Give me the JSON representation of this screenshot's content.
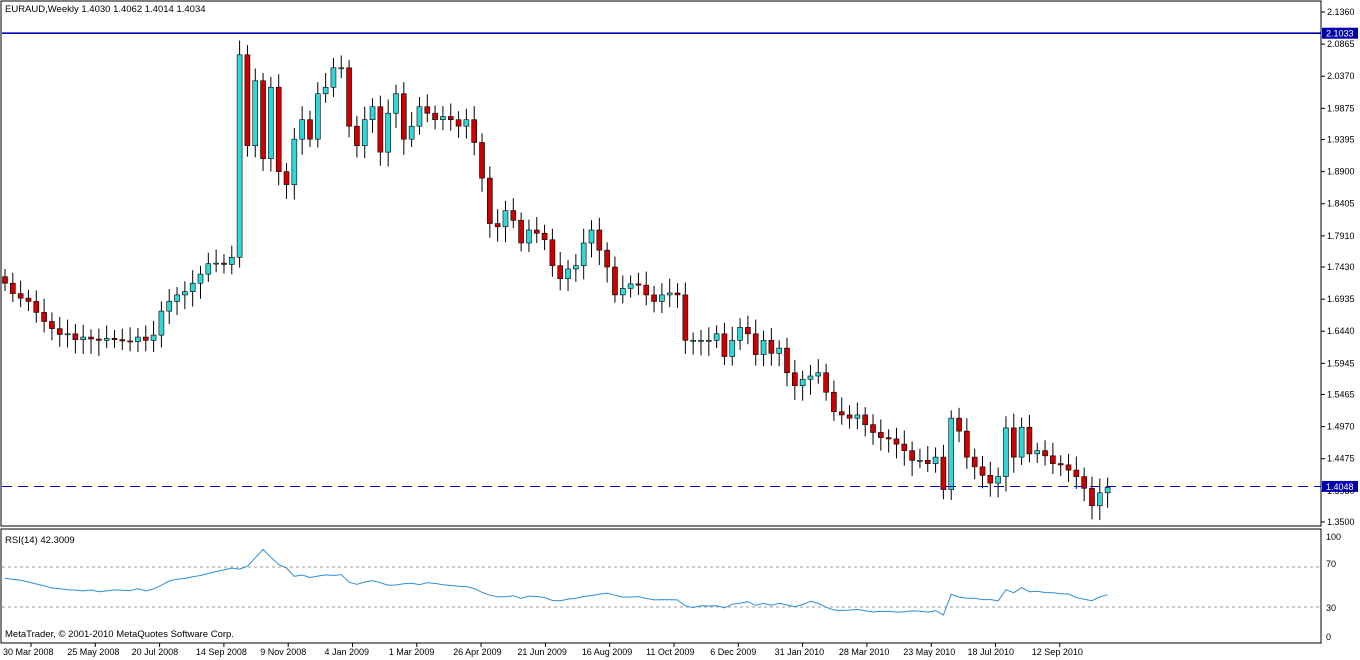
{
  "colors": {
    "background": "#ffffff",
    "up_fill": "#33d6d6",
    "down_fill": "#cc0000",
    "wick": "#000000",
    "hline": "#0000aa",
    "rsi_line": "#2f8fd8",
    "frame": "#000000",
    "level_dash": "#999999"
  },
  "header": {
    "text": "EURAUD,Weekly  1.4030 1.4062 1.4014 1.4034"
  },
  "price_tags": {
    "upper_line": "2.1033",
    "current": "1.4048"
  },
  "rsi_panel": {
    "label": "RSI(14) 42.3009",
    "ticks": [
      "100",
      "70",
      "30",
      "0"
    ]
  },
  "copyright": "MetaTrader, © 2001-2010 MetaQuotes Software Corp.",
  "chart_data": [
    {
      "type": "candlestick",
      "title": "EURAUD,Weekly",
      "ohlc_last": [
        1.403,
        1.4062,
        1.4014,
        1.4034
      ],
      "ylim": [
        1.35,
        2.136
      ],
      "y_ticks": [
        "2.1360",
        "2.0865",
        "2.0370",
        "1.9875",
        "1.9395",
        "1.8900",
        "1.8405",
        "1.7910",
        "1.7430",
        "1.6935",
        "1.6440",
        "1.5945",
        "1.5465",
        "1.4970",
        "1.4475",
        "1.3980",
        "1.3500"
      ],
      "horizontal_lines": [
        {
          "value": 2.1033,
          "style": "solid"
        },
        {
          "value": 1.4048,
          "style": "dashed"
        }
      ],
      "x_labels": [
        "30 Mar 2008",
        "25 May 2008",
        "20 Jul 2008",
        "14 Sep 2008",
        "9 Nov 2008",
        "4 Jan 2009",
        "1 Mar 2009",
        "26 Apr 2009",
        "21 Jun 2009",
        "16 Aug 2009",
        "11 Oct 2009",
        "6 Dec 2009",
        "31 Jan 2010",
        "28 Mar 2010",
        "23 May 2010",
        "18 Jul 2010",
        "12 Sep 2010"
      ],
      "closes": [
        1.718,
        1.702,
        1.695,
        1.69,
        1.673,
        1.659,
        1.648,
        1.639,
        1.64,
        1.631,
        1.635,
        1.632,
        1.63,
        1.633,
        1.631,
        1.629,
        1.628,
        1.635,
        1.63,
        1.638,
        1.675,
        1.69,
        1.7,
        1.705,
        1.718,
        1.732,
        1.748,
        1.749,
        1.747,
        1.758,
        2.07,
        1.93,
        2.03,
        1.91,
        2.02,
        1.89,
        1.87,
        1.94,
        1.97,
        1.94,
        2.01,
        2.02,
        2.05,
        2.05,
        1.96,
        1.93,
        1.97,
        1.99,
        1.92,
        1.98,
        2.01,
        1.94,
        1.96,
        1.99,
        1.98,
        1.97,
        1.975,
        1.97,
        1.96,
        1.97,
        1.935,
        1.88,
        1.81,
        1.805,
        1.83,
        1.815,
        1.78,
        1.8,
        1.795,
        1.785,
        1.745,
        1.725,
        1.74,
        1.745,
        1.78,
        1.8,
        1.769,
        1.743,
        1.7,
        1.71,
        1.717,
        1.715,
        1.7,
        1.69,
        1.7,
        1.703,
        1.7,
        1.63,
        1.63,
        1.63,
        1.63,
        1.64,
        1.605,
        1.63,
        1.65,
        1.64,
        1.608,
        1.63,
        1.61,
        1.618,
        1.58,
        1.56,
        1.57,
        1.575,
        1.58,
        1.55,
        1.52,
        1.515,
        1.51,
        1.515,
        1.5,
        1.488,
        1.48,
        1.478,
        1.47,
        1.46,
        1.445,
        1.445,
        1.44,
        1.45,
        1.4,
        1.51,
        1.49,
        1.45,
        1.435,
        1.422,
        1.41,
        1.42,
        1.495,
        1.45,
        1.496,
        1.455,
        1.46,
        1.452,
        1.44,
        1.438,
        1.43,
        1.42,
        1.402,
        1.375,
        1.395,
        1.4034
      ],
      "rsi": {
        "name": "RSI(14)",
        "last_value": 42.3009,
        "ylim": [
          0,
          100
        ],
        "levels": [
          70,
          30
        ],
        "values": [
          58.6,
          57.7,
          56.7,
          55.0,
          53.0,
          51.2,
          49.1,
          48.3,
          47.2,
          46.9,
          46.1,
          47.1,
          45.3,
          46.1,
          47.1,
          46.8,
          46.3,
          48.3,
          46.0,
          48.1,
          51.8,
          56.0,
          57.8,
          58.6,
          60.3,
          61.5,
          63.6,
          65.5,
          67.1,
          68.9,
          67.9,
          70.7,
          79.2,
          87.6,
          79.7,
          72.4,
          68.9,
          60.7,
          62.0,
          59.5,
          60.9,
          62.1,
          61.6,
          62.4,
          54.8,
          52.7,
          55.0,
          56.4,
          54.2,
          51.8,
          52.0,
          53.3,
          53.7,
          52.4,
          54.3,
          53.6,
          52.3,
          51.5,
          50.7,
          50.4,
          48.4,
          44.7,
          41.8,
          40.3,
          40.3,
          41.3,
          38.7,
          40.9,
          40.5,
          39.5,
          36.5,
          36.3,
          37.9,
          38.8,
          40.5,
          41.5,
          42.9,
          43.8,
          41.7,
          40.0,
          39.9,
          40.4,
          38.6,
          37.1,
          37.4,
          37.3,
          37.1,
          31.2,
          29.4,
          31.2,
          31.0,
          31.3,
          29.1,
          32.7,
          33.8,
          35.3,
          31.6,
          33.6,
          31.6,
          33.7,
          32.0,
          30.3,
          32.4,
          35.7,
          33.5,
          29.8,
          27.0,
          26.5,
          26.9,
          27.6,
          26.3,
          25.0,
          25.6,
          25.7,
          24.9,
          25.3,
          26.1,
          25.8,
          24.9,
          26.4,
          22.1,
          42.7,
          39.9,
          38.8,
          38.7,
          37.4,
          37.5,
          36.1,
          47.3,
          44.3,
          49.4,
          45.3,
          45.8,
          44.5,
          44.2,
          43.3,
          43.0,
          39.5,
          37.7,
          36.3,
          40.1,
          42.3
        ]
      }
    }
  ]
}
